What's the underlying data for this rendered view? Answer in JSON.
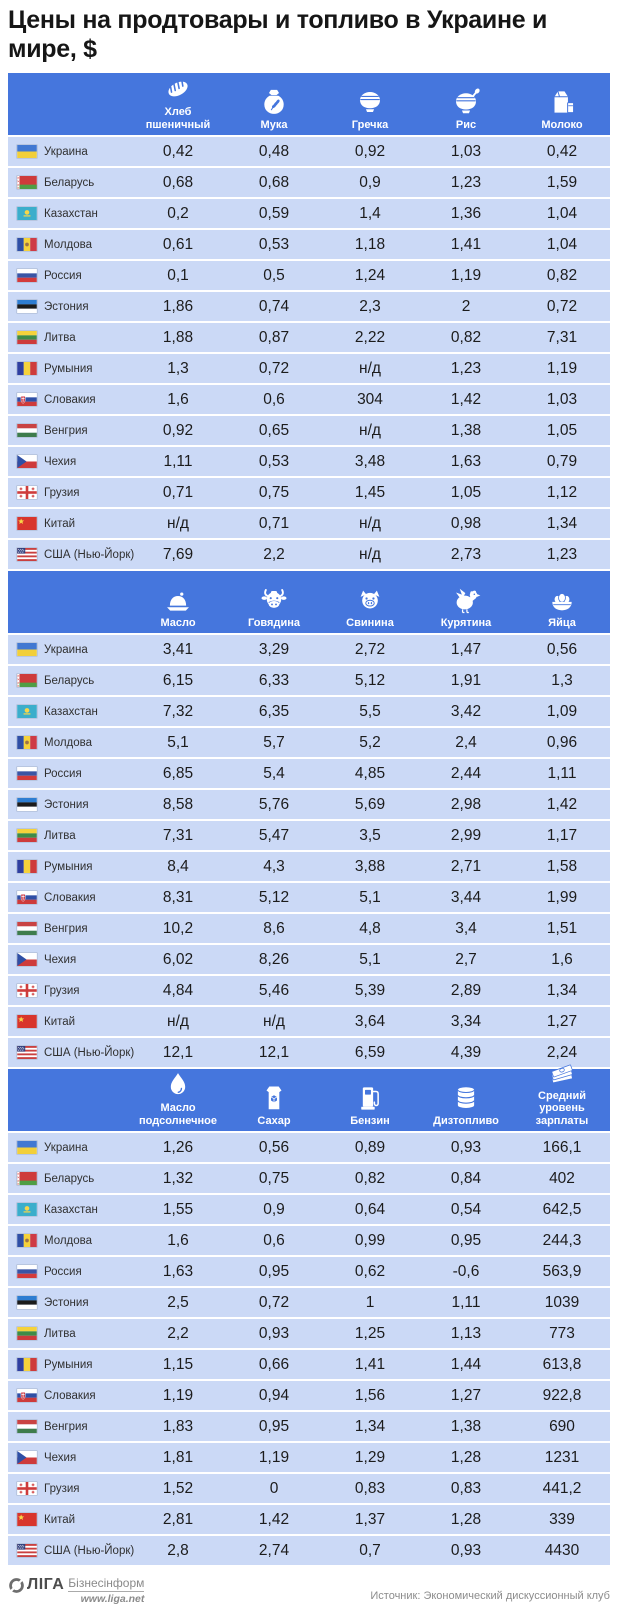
{
  "title": "Цены на продтовары и топливо в Украине и мире, $",
  "colors": {
    "header_blue": "#4576DD",
    "row_bg": "#CBD9F6",
    "header_text": "#FFFFFF"
  },
  "footer": {
    "logo_name": "ЛІГА",
    "logo_sub": "Бізнесінформ",
    "logo_site": "www.liga.net",
    "source": "Источник: Экономический дискуссионный клуб"
  },
  "chart_data": [
    {
      "type": "table",
      "columns": [
        {
          "label": "Хлеб пшеничный",
          "icon": "bread-icon"
        },
        {
          "label": "Мука",
          "icon": "flour-sack-icon"
        },
        {
          "label": "Гречка",
          "icon": "buckwheat-bowl-icon"
        },
        {
          "label": "Рис",
          "icon": "rice-bowl-icon"
        },
        {
          "label": "Молоко",
          "icon": "milk-icon"
        }
      ],
      "rows": [
        {
          "country": "Украина",
          "flag": "ua",
          "values": [
            "0,42",
            "0,48",
            "0,92",
            "1,03",
            "0,42"
          ]
        },
        {
          "country": "Беларусь",
          "flag": "by",
          "values": [
            "0,68",
            "0,68",
            "0,9",
            "1,23",
            "1,59"
          ]
        },
        {
          "country": "Казахстан",
          "flag": "kz",
          "values": [
            "0,2",
            "0,59",
            "1,4",
            "1,36",
            "1,04"
          ]
        },
        {
          "country": "Молдова",
          "flag": "md",
          "values": [
            "0,61",
            "0,53",
            "1,18",
            "1,41",
            "1,04"
          ]
        },
        {
          "country": "Россия",
          "flag": "ru",
          "values": [
            "0,1",
            "0,5",
            "1,24",
            "1,19",
            "0,82"
          ]
        },
        {
          "country": "Эстония",
          "flag": "ee",
          "values": [
            "1,86",
            "0,74",
            "2,3",
            "2",
            "0,72"
          ]
        },
        {
          "country": "Литва",
          "flag": "lt",
          "values": [
            "1,88",
            "0,87",
            "2,22",
            "0,82",
            "7,31"
          ]
        },
        {
          "country": "Румыния",
          "flag": "ro",
          "values": [
            "1,3",
            "0,72",
            "н/д",
            "1,23",
            "1,19"
          ]
        },
        {
          "country": "Словакия",
          "flag": "sk",
          "values": [
            "1,6",
            "0,6",
            "304",
            "1,42",
            "1,03"
          ]
        },
        {
          "country": "Венгрия",
          "flag": "hu",
          "values": [
            "0,92",
            "0,65",
            "н/д",
            "1,38",
            "1,05"
          ]
        },
        {
          "country": "Чехия",
          "flag": "cz",
          "values": [
            "1,11",
            "0,53",
            "3,48",
            "1,63",
            "0,79"
          ]
        },
        {
          "country": "Грузия",
          "flag": "ge",
          "values": [
            "0,71",
            "0,75",
            "1,45",
            "1,05",
            "1,12"
          ]
        },
        {
          "country": "Китай",
          "flag": "cn",
          "values": [
            "н/д",
            "0,71",
            "н/д",
            "0,98",
            "1,34"
          ]
        },
        {
          "country": "США (Нью-Йорк)",
          "flag": "us",
          "values": [
            "7,69",
            "2,2",
            "н/д",
            "2,73",
            "1,23"
          ]
        }
      ]
    },
    {
      "type": "table",
      "columns": [
        {
          "label": "Масло",
          "icon": "butter-icon"
        },
        {
          "label": "Говядина",
          "icon": "beef-icon"
        },
        {
          "label": "Свинина",
          "icon": "pork-icon"
        },
        {
          "label": "Курятина",
          "icon": "chicken-icon"
        },
        {
          "label": "Яйца",
          "icon": "eggs-icon"
        }
      ],
      "rows": [
        {
          "country": "Украина",
          "flag": "ua",
          "values": [
            "3,41",
            "3,29",
            "2,72",
            "1,47",
            "0,56"
          ]
        },
        {
          "country": "Беларусь",
          "flag": "by",
          "values": [
            "6,15",
            "6,33",
            "5,12",
            "1,91",
            "1,3"
          ]
        },
        {
          "country": "Казахстан",
          "flag": "kz",
          "values": [
            "7,32",
            "6,35",
            "5,5",
            "3,42",
            "1,09"
          ]
        },
        {
          "country": "Молдова",
          "flag": "md",
          "values": [
            "5,1",
            "5,7",
            "5,2",
            "2,4",
            "0,96"
          ]
        },
        {
          "country": "Россия",
          "flag": "ru",
          "values": [
            "6,85",
            "5,4",
            "4,85",
            "2,44",
            "1,11"
          ]
        },
        {
          "country": "Эстония",
          "flag": "ee",
          "values": [
            "8,58",
            "5,76",
            "5,69",
            "2,98",
            "1,42"
          ]
        },
        {
          "country": "Литва",
          "flag": "lt",
          "values": [
            "7,31",
            "5,47",
            "3,5",
            "2,99",
            "1,17"
          ]
        },
        {
          "country": "Румыния",
          "flag": "ro",
          "values": [
            "8,4",
            "4,3",
            "3,88",
            "2,71",
            "1,58"
          ]
        },
        {
          "country": "Словакия",
          "flag": "sk",
          "values": [
            "8,31",
            "5,12",
            "5,1",
            "3,44",
            "1,99"
          ]
        },
        {
          "country": "Венгрия",
          "flag": "hu",
          "values": [
            "10,2",
            "8,6",
            "4,8",
            "3,4",
            "1,51"
          ]
        },
        {
          "country": "Чехия",
          "flag": "cz",
          "values": [
            "6,02",
            "8,26",
            "5,1",
            "2,7",
            "1,6"
          ]
        },
        {
          "country": "Грузия",
          "flag": "ge",
          "values": [
            "4,84",
            "5,46",
            "5,39",
            "2,89",
            "1,34"
          ]
        },
        {
          "country": "Китай",
          "flag": "cn",
          "values": [
            "н/д",
            "н/д",
            "3,64",
            "3,34",
            "1,27"
          ]
        },
        {
          "country": "США (Нью-Йорк)",
          "flag": "us",
          "values": [
            "12,1",
            "12,1",
            "6,59",
            "4,39",
            "2,24"
          ]
        }
      ]
    },
    {
      "type": "table",
      "columns": [
        {
          "label": "Масло подсолнечное",
          "icon": "sunflower-oil-icon"
        },
        {
          "label": "Сахар",
          "icon": "sugar-bag-icon"
        },
        {
          "label": "Бензин",
          "icon": "petrol-pump-icon"
        },
        {
          "label": "Дизтопливо",
          "icon": "diesel-barrel-icon"
        },
        {
          "label": "Средний уровень зарплаты",
          "icon": "salary-icon"
        }
      ],
      "rows": [
        {
          "country": "Украина",
          "flag": "ua",
          "values": [
            "1,26",
            "0,56",
            "0,89",
            "0,93",
            "166,1"
          ]
        },
        {
          "country": "Беларусь",
          "flag": "by",
          "values": [
            "1,32",
            "0,75",
            "0,82",
            "0,84",
            "402"
          ]
        },
        {
          "country": "Казахстан",
          "flag": "kz",
          "values": [
            "1,55",
            "0,9",
            "0,64",
            "0,54",
            "642,5"
          ]
        },
        {
          "country": "Молдова",
          "flag": "md",
          "values": [
            "1,6",
            "0,6",
            "0,99",
            "0,95",
            "244,3"
          ]
        },
        {
          "country": "Россия",
          "flag": "ru",
          "values": [
            "1,63",
            "0,95",
            "0,62",
            "-0,6",
            "563,9"
          ]
        },
        {
          "country": "Эстония",
          "flag": "ee",
          "values": [
            "2,5",
            "0,72",
            "1",
            "1,11",
            "1039"
          ]
        },
        {
          "country": "Литва",
          "flag": "lt",
          "values": [
            "2,2",
            "0,93",
            "1,25",
            "1,13",
            "773"
          ]
        },
        {
          "country": "Румыния",
          "flag": "ro",
          "values": [
            "1,15",
            "0,66",
            "1,41",
            "1,44",
            "613,8"
          ]
        },
        {
          "country": "Словакия",
          "flag": "sk",
          "values": [
            "1,19",
            "0,94",
            "1,56",
            "1,27",
            "922,8"
          ]
        },
        {
          "country": "Венгрия",
          "flag": "hu",
          "values": [
            "1,83",
            "0,95",
            "1,34",
            "1,38",
            "690"
          ]
        },
        {
          "country": "Чехия",
          "flag": "cz",
          "values": [
            "1,81",
            "1,19",
            "1,29",
            "1,28",
            "1231"
          ]
        },
        {
          "country": "Грузия",
          "flag": "ge",
          "values": [
            "1,52",
            "0",
            "0,83",
            "0,83",
            "441,2"
          ]
        },
        {
          "country": "Китай",
          "flag": "cn",
          "values": [
            "2,81",
            "1,42",
            "1,37",
            "1,28",
            "339"
          ]
        },
        {
          "country": "США (Нью-Йорк)",
          "flag": "us",
          "values": [
            "2,8",
            "2,74",
            "0,7",
            "0,93",
            "4430"
          ]
        }
      ]
    }
  ]
}
